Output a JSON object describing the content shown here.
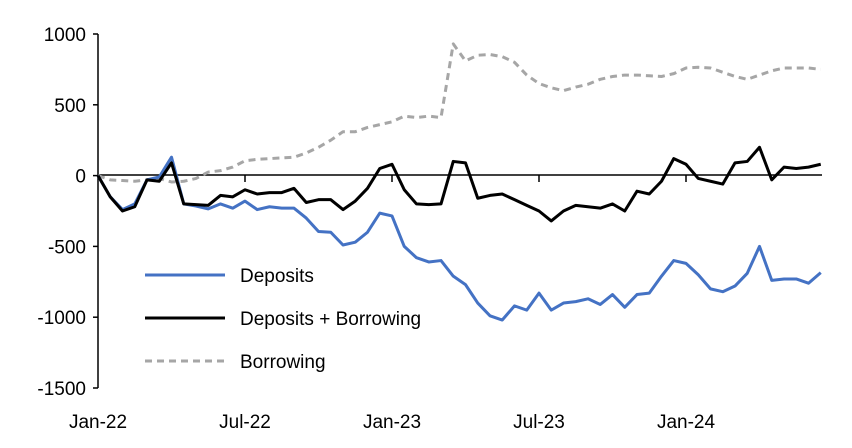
{
  "chart_data": {
    "type": "line",
    "title": "",
    "xlabel": "",
    "ylabel": "",
    "x_unit": "months since Jan-22 (half-month steps)",
    "xlim": [
      0,
      29.5
    ],
    "ylim": [
      -1500,
      1000
    ],
    "yticks": [
      1000,
      500,
      0,
      -500,
      -1000,
      -1500
    ],
    "xticks": [
      {
        "label": "Jan-22",
        "month": 0
      },
      {
        "label": "Jul-22",
        "month": 6
      },
      {
        "label": "Jan-23",
        "month": 12
      },
      {
        "label": "Jul-23",
        "month": 18
      },
      {
        "label": "Jan-24",
        "month": 24
      }
    ],
    "grid": false,
    "legend_placement": "bottom-left",
    "series": [
      {
        "name": "Deposits",
        "color": "#4472C4",
        "dash": "solid",
        "values": [
          0,
          -150,
          -240,
          -200,
          -30,
          -10,
          130,
          -200,
          -215,
          -235,
          -200,
          -230,
          -180,
          -240,
          -220,
          -230,
          -230,
          -300,
          -395,
          -400,
          -490,
          -470,
          -400,
          -265,
          -285,
          -500,
          -580,
          -610,
          -600,
          -710,
          -770,
          -900,
          -990,
          -1020,
          -920,
          -950,
          -830,
          -950,
          -900,
          -890,
          -870,
          -910,
          -840,
          -930,
          -840,
          -830,
          -710,
          -600,
          -620,
          -700,
          -800,
          -820,
          -780,
          -690,
          -500,
          -740,
          -730,
          -730,
          -760,
          -685
        ]
      },
      {
        "name": "Deposits + Borrowing",
        "color": "#000000",
        "dash": "solid",
        "values": [
          0,
          -150,
          -250,
          -220,
          -30,
          -40,
          90,
          -200,
          -205,
          -210,
          -140,
          -150,
          -100,
          -130,
          -120,
          -120,
          -90,
          -190,
          -170,
          -170,
          -240,
          -180,
          -90,
          50,
          80,
          -100,
          -200,
          -205,
          -200,
          100,
          90,
          -160,
          -140,
          -130,
          -170,
          -210,
          -250,
          -320,
          -250,
          -210,
          -220,
          -230,
          -200,
          -250,
          -110,
          -130,
          -40,
          120,
          80,
          -20,
          -40,
          -60,
          90,
          100,
          200,
          -30,
          60,
          50,
          60,
          80
        ]
      },
      {
        "name": "Borrowing",
        "color": "#A6A6A6",
        "dash": "dashed",
        "values": [
          0,
          -30,
          -35,
          -40,
          -30,
          -20,
          -45,
          -40,
          -20,
          25,
          35,
          60,
          105,
          115,
          120,
          125,
          130,
          160,
          200,
          250,
          310,
          310,
          340,
          360,
          380,
          420,
          410,
          420,
          410,
          930,
          810,
          850,
          855,
          840,
          800,
          710,
          650,
          620,
          600,
          625,
          645,
          680,
          700,
          710,
          710,
          705,
          700,
          720,
          760,
          765,
          760,
          730,
          700,
          680,
          710,
          740,
          760,
          760,
          760,
          750
        ]
      }
    ]
  }
}
